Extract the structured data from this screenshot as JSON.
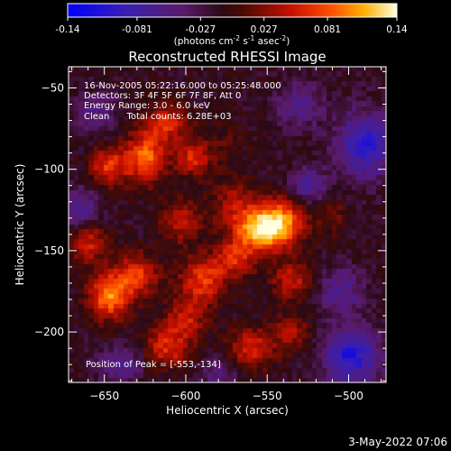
{
  "chart_data": {
    "type": "heatmap",
    "title": "Reconstructed RHESSI Image",
    "xlabel": "Heliocentric X (arcsec)",
    "ylabel": "Heliocentric Y (arcsec)",
    "xlim": [
      -672,
      -477
    ],
    "ylim": [
      -231,
      -37
    ],
    "x_ticks": [
      -650,
      -600,
      -550,
      -500
    ],
    "y_ticks": [
      -50,
      -100,
      -150,
      -200
    ],
    "colorbar": {
      "min": -0.14,
      "max": 0.14,
      "ticks": [
        "-0.14",
        "-0.081",
        "-0.027",
        "0.027",
        "0.081",
        "0.14"
      ],
      "tick_values": [
        -0.14,
        -0.081,
        -0.027,
        0.027,
        0.081,
        0.14
      ],
      "unit_main": "(photons cm",
      "unit_exp1": "-2",
      "unit_mid": " s",
      "unit_exp2": "-1",
      "unit_tail": " asec",
      "unit_exp3": "-2",
      "unit_close": ")"
    },
    "annotations": [
      "16-Nov-2005 05:22:16.000 to 05:25:48.000",
      "Detectors: 3F 4F 5F 6F 7F 8F, Att 0",
      "Energy Range: 3.0 - 6.0 keV",
      "Clean      Total counts: 6.28E+03"
    ],
    "peak_label": "Position of Peak = [-553,-134]",
    "peak": {
      "x": -553,
      "y": -134
    },
    "blobs": [
      {
        "x": -553,
        "y": -137,
        "v": 0.14,
        "sx": 12,
        "sy": 9
      },
      {
        "x": -540,
        "y": -130,
        "v": 0.07,
        "sx": 10,
        "sy": 10
      },
      {
        "x": -570,
        "y": -120,
        "v": 0.05,
        "sx": 10,
        "sy": 10
      },
      {
        "x": -625,
        "y": -93,
        "v": 0.1,
        "sx": 9,
        "sy": 11
      },
      {
        "x": -648,
        "y": -98,
        "v": 0.08,
        "sx": 8,
        "sy": 8
      },
      {
        "x": -612,
        "y": -72,
        "v": 0.07,
        "sx": 10,
        "sy": 8
      },
      {
        "x": -595,
        "y": -93,
        "v": 0.07,
        "sx": 8,
        "sy": 8
      },
      {
        "x": -603,
        "y": -132,
        "v": 0.06,
        "sx": 9,
        "sy": 9
      },
      {
        "x": -660,
        "y": -145,
        "v": 0.07,
        "sx": 8,
        "sy": 9
      },
      {
        "x": -647,
        "y": -178,
        "v": 0.11,
        "sx": 9,
        "sy": 10
      },
      {
        "x": -630,
        "y": -165,
        "v": 0.08,
        "sx": 9,
        "sy": 9
      },
      {
        "x": -590,
        "y": -168,
        "v": 0.08,
        "sx": 10,
        "sy": 10
      },
      {
        "x": -570,
        "y": -155,
        "v": 0.07,
        "sx": 9,
        "sy": 8
      },
      {
        "x": -535,
        "y": -168,
        "v": 0.06,
        "sx": 9,
        "sy": 9
      },
      {
        "x": -612,
        "y": -210,
        "v": 0.07,
        "sx": 10,
        "sy": 9
      },
      {
        "x": -560,
        "y": -210,
        "v": 0.07,
        "sx": 10,
        "sy": 9
      },
      {
        "x": -600,
        "y": -192,
        "v": 0.06,
        "sx": 9,
        "sy": 9
      },
      {
        "x": -535,
        "y": -200,
        "v": 0.05,
        "sx": 8,
        "sy": 8
      },
      {
        "x": -510,
        "y": -130,
        "v": 0.03,
        "sx": 8,
        "sy": 8
      },
      {
        "x": -575,
        "y": -82,
        "v": 0.02,
        "sx": 8,
        "sy": 8
      },
      {
        "x": -490,
        "y": -85,
        "v": -0.09,
        "sx": 12,
        "sy": 14
      },
      {
        "x": -498,
        "y": -215,
        "v": -0.1,
        "sx": 12,
        "sy": 12
      },
      {
        "x": -505,
        "y": -175,
        "v": -0.05,
        "sx": 10,
        "sy": 10
      },
      {
        "x": -665,
        "y": -125,
        "v": -0.06,
        "sx": 8,
        "sy": 10
      },
      {
        "x": -640,
        "y": -220,
        "v": -0.05,
        "sx": 10,
        "sy": 8
      },
      {
        "x": -525,
        "y": -110,
        "v": -0.06,
        "sx": 8,
        "sy": 8
      },
      {
        "x": -655,
        "y": -65,
        "v": -0.04,
        "sx": 9,
        "sy": 9
      },
      {
        "x": -530,
        "y": -60,
        "v": -0.05,
        "sx": 10,
        "sy": 9
      },
      {
        "x": -580,
        "y": -225,
        "v": -0.04,
        "sx": 8,
        "sy": 7
      }
    ],
    "grid": false,
    "colormap": "blue-purple-red-yellow-white"
  },
  "footer": {
    "timestamp": "3-May-2022 07:06"
  }
}
